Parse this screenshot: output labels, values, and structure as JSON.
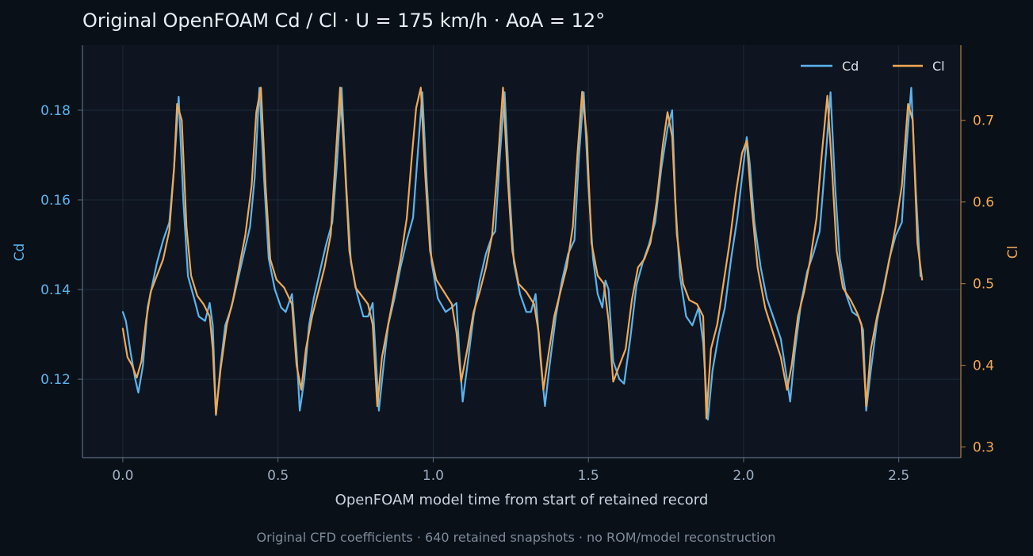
{
  "chart_data": {
    "type": "line",
    "title": "Original OpenFOAM Cd / Cl · U = 175 km/h · AoA = 12°",
    "xlabel": "OpenFOAM model time from start of retained record",
    "ylabel_left": "Cd",
    "ylabel_right": "Cl",
    "footnote": "Original CFD coefficients · 640 retained snapshots · no ROM/model reconstruction",
    "xlim": [
      -0.13,
      2.7
    ],
    "ylim_left": [
      0.1025,
      0.1945
    ],
    "ylim_right": [
      0.287,
      0.792
    ],
    "x_ticks": [
      "0.0",
      "0.5",
      "1.0",
      "1.5",
      "2.0",
      "2.5"
    ],
    "y_ticks_left": [
      "0.12",
      "0.14",
      "0.16",
      "0.18"
    ],
    "y_ticks_right": [
      "0.3",
      "0.4",
      "0.5",
      "0.6",
      "0.7"
    ],
    "grid": true,
    "legend_position": "top-right",
    "colors": {
      "Cd": "#5ab4ee",
      "Cl": "#f0a855"
    },
    "series": [
      {
        "name": "Cd",
        "axis": "left",
        "points": [
          [
            0.0,
            0.135
          ],
          [
            0.01,
            0.133
          ],
          [
            0.025,
            0.126
          ],
          [
            0.04,
            0.12
          ],
          [
            0.05,
            0.117
          ],
          [
            0.065,
            0.123
          ],
          [
            0.08,
            0.136
          ],
          [
            0.095,
            0.141
          ],
          [
            0.11,
            0.146
          ],
          [
            0.13,
            0.151
          ],
          [
            0.15,
            0.155
          ],
          [
            0.165,
            0.167
          ],
          [
            0.18,
            0.183
          ],
          [
            0.195,
            0.16
          ],
          [
            0.21,
            0.143
          ],
          [
            0.23,
            0.138
          ],
          [
            0.245,
            0.134
          ],
          [
            0.265,
            0.133
          ],
          [
            0.28,
            0.137
          ],
          [
            0.29,
            0.132
          ],
          [
            0.3,
            0.112
          ],
          [
            0.315,
            0.123
          ],
          [
            0.33,
            0.132
          ],
          [
            0.35,
            0.136
          ],
          [
            0.37,
            0.142
          ],
          [
            0.39,
            0.148
          ],
          [
            0.41,
            0.154
          ],
          [
            0.425,
            0.165
          ],
          [
            0.44,
            0.185
          ],
          [
            0.455,
            0.165
          ],
          [
            0.47,
            0.147
          ],
          [
            0.49,
            0.14
          ],
          [
            0.51,
            0.136
          ],
          [
            0.525,
            0.135
          ],
          [
            0.545,
            0.139
          ],
          [
            0.56,
            0.126
          ],
          [
            0.57,
            0.113
          ],
          [
            0.585,
            0.12
          ],
          [
            0.6,
            0.132
          ],
          [
            0.615,
            0.138
          ],
          [
            0.635,
            0.144
          ],
          [
            0.655,
            0.15
          ],
          [
            0.675,
            0.155
          ],
          [
            0.69,
            0.168
          ],
          [
            0.705,
            0.185
          ],
          [
            0.72,
            0.163
          ],
          [
            0.735,
            0.146
          ],
          [
            0.755,
            0.139
          ],
          [
            0.775,
            0.134
          ],
          [
            0.79,
            0.134
          ],
          [
            0.805,
            0.137
          ],
          [
            0.815,
            0.125
          ],
          [
            0.825,
            0.113
          ],
          [
            0.84,
            0.123
          ],
          [
            0.855,
            0.132
          ],
          [
            0.875,
            0.138
          ],
          [
            0.895,
            0.145
          ],
          [
            0.915,
            0.151
          ],
          [
            0.935,
            0.156
          ],
          [
            0.95,
            0.17
          ],
          [
            0.965,
            0.184
          ],
          [
            0.98,
            0.163
          ],
          [
            0.995,
            0.146
          ],
          [
            1.015,
            0.138
          ],
          [
            1.04,
            0.135
          ],
          [
            1.06,
            0.136
          ],
          [
            1.075,
            0.137
          ],
          [
            1.085,
            0.125
          ],
          [
            1.095,
            0.115
          ],
          [
            1.11,
            0.123
          ],
          [
            1.13,
            0.134
          ],
          [
            1.15,
            0.142
          ],
          [
            1.17,
            0.148
          ],
          [
            1.19,
            0.152
          ],
          [
            1.2,
            0.153
          ],
          [
            1.215,
            0.17
          ],
          [
            1.23,
            0.184
          ],
          [
            1.245,
            0.163
          ],
          [
            1.26,
            0.146
          ],
          [
            1.28,
            0.139
          ],
          [
            1.3,
            0.135
          ],
          [
            1.315,
            0.135
          ],
          [
            1.33,
            0.139
          ],
          [
            1.345,
            0.125
          ],
          [
            1.36,
            0.114
          ],
          [
            1.375,
            0.123
          ],
          [
            1.395,
            0.134
          ],
          [
            1.415,
            0.142
          ],
          [
            1.435,
            0.148
          ],
          [
            1.455,
            0.151
          ],
          [
            1.47,
            0.17
          ],
          [
            1.485,
            0.184
          ],
          [
            1.5,
            0.163
          ],
          [
            1.515,
            0.147
          ],
          [
            1.53,
            0.139
          ],
          [
            1.545,
            0.136
          ],
          [
            1.555,
            0.142
          ],
          [
            1.565,
            0.14
          ],
          [
            1.58,
            0.124
          ],
          [
            1.6,
            0.12
          ],
          [
            1.615,
            0.119
          ],
          [
            1.635,
            0.129
          ],
          [
            1.655,
            0.141
          ],
          [
            1.675,
            0.146
          ],
          [
            1.695,
            0.15
          ],
          [
            1.715,
            0.155
          ],
          [
            1.735,
            0.167
          ],
          [
            1.755,
            0.176
          ],
          [
            1.77,
            0.18
          ],
          [
            1.78,
            0.16
          ],
          [
            1.795,
            0.143
          ],
          [
            1.815,
            0.134
          ],
          [
            1.835,
            0.132
          ],
          [
            1.855,
            0.136
          ],
          [
            1.87,
            0.128
          ],
          [
            1.885,
            0.111
          ],
          [
            1.9,
            0.122
          ],
          [
            1.92,
            0.13
          ],
          [
            1.94,
            0.136
          ],
          [
            1.96,
            0.147
          ],
          [
            1.98,
            0.156
          ],
          [
            2.0,
            0.168
          ],
          [
            2.01,
            0.174
          ],
          [
            2.02,
            0.168
          ],
          [
            2.035,
            0.155
          ],
          [
            2.055,
            0.145
          ],
          [
            2.075,
            0.138
          ],
          [
            2.1,
            0.133
          ],
          [
            2.12,
            0.129
          ],
          [
            2.14,
            0.12
          ],
          [
            2.15,
            0.115
          ],
          [
            2.165,
            0.126
          ],
          [
            2.185,
            0.137
          ],
          [
            2.205,
            0.144
          ],
          [
            2.225,
            0.148
          ],
          [
            2.245,
            0.153
          ],
          [
            2.265,
            0.17
          ],
          [
            2.28,
            0.184
          ],
          [
            2.295,
            0.163
          ],
          [
            2.31,
            0.147
          ],
          [
            2.33,
            0.139
          ],
          [
            2.35,
            0.135
          ],
          [
            2.37,
            0.134
          ],
          [
            2.385,
            0.131
          ],
          [
            2.395,
            0.113
          ],
          [
            2.41,
            0.122
          ],
          [
            2.43,
            0.133
          ],
          [
            2.45,
            0.14
          ],
          [
            2.47,
            0.147
          ],
          [
            2.49,
            0.152
          ],
          [
            2.51,
            0.155
          ],
          [
            2.525,
            0.172
          ],
          [
            2.54,
            0.185
          ],
          [
            2.555,
            0.162
          ],
          [
            2.57,
            0.143
          ]
        ]
      },
      {
        "name": "Cl",
        "axis": "right",
        "points": [
          [
            0.0,
            0.445
          ],
          [
            0.015,
            0.41
          ],
          [
            0.03,
            0.4
          ],
          [
            0.045,
            0.385
          ],
          [
            0.06,
            0.405
          ],
          [
            0.075,
            0.455
          ],
          [
            0.09,
            0.49
          ],
          [
            0.11,
            0.51
          ],
          [
            0.13,
            0.53
          ],
          [
            0.15,
            0.565
          ],
          [
            0.165,
            0.64
          ],
          [
            0.175,
            0.72
          ],
          [
            0.19,
            0.7
          ],
          [
            0.205,
            0.57
          ],
          [
            0.22,
            0.51
          ],
          [
            0.24,
            0.485
          ],
          [
            0.26,
            0.475
          ],
          [
            0.28,
            0.46
          ],
          [
            0.29,
            0.42
          ],
          [
            0.3,
            0.34
          ],
          [
            0.315,
            0.395
          ],
          [
            0.335,
            0.45
          ],
          [
            0.355,
            0.48
          ],
          [
            0.375,
            0.52
          ],
          [
            0.395,
            0.56
          ],
          [
            0.415,
            0.62
          ],
          [
            0.43,
            0.71
          ],
          [
            0.445,
            0.74
          ],
          [
            0.46,
            0.62
          ],
          [
            0.475,
            0.53
          ],
          [
            0.495,
            0.505
          ],
          [
            0.52,
            0.495
          ],
          [
            0.545,
            0.475
          ],
          [
            0.56,
            0.4
          ],
          [
            0.575,
            0.37
          ],
          [
            0.59,
            0.42
          ],
          [
            0.61,
            0.46
          ],
          [
            0.63,
            0.49
          ],
          [
            0.65,
            0.52
          ],
          [
            0.67,
            0.56
          ],
          [
            0.685,
            0.65
          ],
          [
            0.7,
            0.74
          ],
          [
            0.715,
            0.65
          ],
          [
            0.73,
            0.54
          ],
          [
            0.75,
            0.495
          ],
          [
            0.77,
            0.485
          ],
          [
            0.79,
            0.475
          ],
          [
            0.805,
            0.45
          ],
          [
            0.82,
            0.35
          ],
          [
            0.835,
            0.41
          ],
          [
            0.855,
            0.45
          ],
          [
            0.875,
            0.49
          ],
          [
            0.895,
            0.53
          ],
          [
            0.915,
            0.58
          ],
          [
            0.93,
            0.65
          ],
          [
            0.945,
            0.715
          ],
          [
            0.96,
            0.74
          ],
          [
            0.975,
            0.63
          ],
          [
            0.99,
            0.54
          ],
          [
            1.01,
            0.505
          ],
          [
            1.035,
            0.49
          ],
          [
            1.06,
            0.475
          ],
          [
            1.075,
            0.44
          ],
          [
            1.09,
            0.38
          ],
          [
            1.11,
            0.42
          ],
          [
            1.13,
            0.465
          ],
          [
            1.15,
            0.49
          ],
          [
            1.17,
            0.52
          ],
          [
            1.19,
            0.56
          ],
          [
            1.205,
            0.63
          ],
          [
            1.225,
            0.74
          ],
          [
            1.24,
            0.63
          ],
          [
            1.255,
            0.54
          ],
          [
            1.275,
            0.5
          ],
          [
            1.3,
            0.49
          ],
          [
            1.325,
            0.475
          ],
          [
            1.34,
            0.44
          ],
          [
            1.355,
            0.37
          ],
          [
            1.37,
            0.41
          ],
          [
            1.39,
            0.46
          ],
          [
            1.41,
            0.49
          ],
          [
            1.43,
            0.52
          ],
          [
            1.45,
            0.57
          ],
          [
            1.465,
            0.66
          ],
          [
            1.48,
            0.735
          ],
          [
            1.495,
            0.68
          ],
          [
            1.51,
            0.55
          ],
          [
            1.53,
            0.51
          ],
          [
            1.55,
            0.5
          ],
          [
            1.565,
            0.455
          ],
          [
            1.58,
            0.38
          ],
          [
            1.6,
            0.4
          ],
          [
            1.62,
            0.42
          ],
          [
            1.64,
            0.48
          ],
          [
            1.66,
            0.52
          ],
          [
            1.68,
            0.53
          ],
          [
            1.7,
            0.55
          ],
          [
            1.72,
            0.6
          ],
          [
            1.74,
            0.67
          ],
          [
            1.755,
            0.71
          ],
          [
            1.77,
            0.68
          ],
          [
            1.785,
            0.56
          ],
          [
            1.805,
            0.5
          ],
          [
            1.825,
            0.48
          ],
          [
            1.85,
            0.475
          ],
          [
            1.87,
            0.46
          ],
          [
            1.88,
            0.335
          ],
          [
            1.895,
            0.42
          ],
          [
            1.915,
            0.45
          ],
          [
            1.935,
            0.5
          ],
          [
            1.955,
            0.55
          ],
          [
            1.975,
            0.61
          ],
          [
            1.995,
            0.66
          ],
          [
            2.01,
            0.675
          ],
          [
            2.025,
            0.6
          ],
          [
            2.045,
            0.52
          ],
          [
            2.07,
            0.47
          ],
          [
            2.095,
            0.44
          ],
          [
            2.12,
            0.41
          ],
          [
            2.14,
            0.37
          ],
          [
            2.155,
            0.4
          ],
          [
            2.175,
            0.46
          ],
          [
            2.195,
            0.49
          ],
          [
            2.215,
            0.53
          ],
          [
            2.235,
            0.58
          ],
          [
            2.25,
            0.65
          ],
          [
            2.27,
            0.73
          ],
          [
            2.285,
            0.64
          ],
          [
            2.3,
            0.54
          ],
          [
            2.32,
            0.495
          ],
          [
            2.345,
            0.48
          ],
          [
            2.365,
            0.465
          ],
          [
            2.38,
            0.45
          ],
          [
            2.395,
            0.35
          ],
          [
            2.41,
            0.42
          ],
          [
            2.43,
            0.46
          ],
          [
            2.45,
            0.49
          ],
          [
            2.47,
            0.53
          ],
          [
            2.49,
            0.57
          ],
          [
            2.51,
            0.62
          ],
          [
            2.53,
            0.72
          ],
          [
            2.545,
            0.7
          ],
          [
            2.56,
            0.55
          ],
          [
            2.575,
            0.505
          ]
        ]
      }
    ]
  }
}
